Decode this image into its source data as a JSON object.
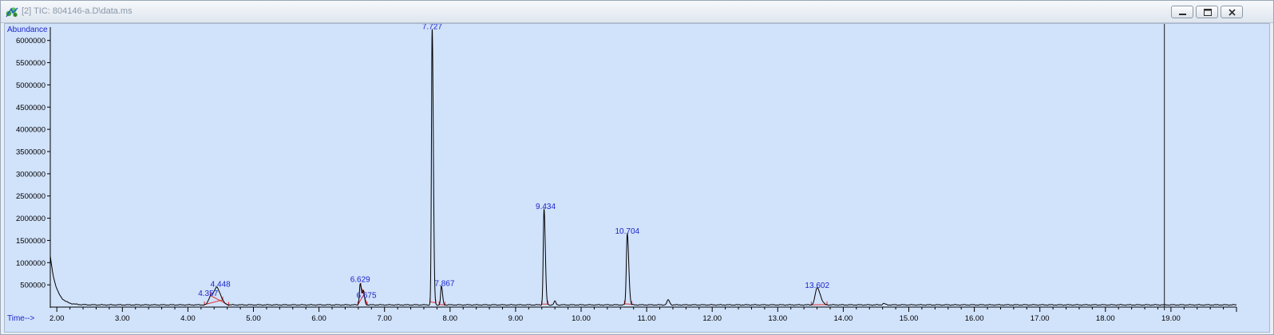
{
  "window": {
    "title": "[2] TIC: 804146-a.D\\data.ms",
    "buttons": [
      "minimize",
      "restore",
      "close"
    ],
    "icon": "app-icon"
  },
  "chart_data": {
    "type": "line",
    "ylabel": "Abundance",
    "xlabel": "Time-->",
    "xlim": [
      1.9,
      20.0
    ],
    "ylim": [
      0,
      6300000
    ],
    "x_ticks": [
      2.0,
      3.0,
      4.0,
      5.0,
      6.0,
      7.0,
      8.0,
      9.0,
      10.0,
      11.0,
      12.0,
      13.0,
      14.0,
      15.0,
      16.0,
      17.0,
      18.0,
      19.0
    ],
    "x_tick_labels": [
      "2.00",
      "3.00",
      "4.00",
      "5.00",
      "6.00",
      "7.00",
      "8.00",
      "9.00",
      "10.00",
      "11.00",
      "12.00",
      "13.00",
      "14.00",
      "15.00",
      "16.00",
      "17.00",
      "18.00",
      "19.00"
    ],
    "y_ticks": [
      500000,
      1000000,
      1500000,
      2000000,
      2500000,
      3000000,
      3500000,
      4000000,
      4500000,
      5000000,
      5500000,
      6000000
    ],
    "y_tick_labels": [
      "500000",
      "1000000",
      "1500000",
      "2000000",
      "2500000",
      "3000000",
      "3500000",
      "4000000",
      "4500000",
      "5000000",
      "5500000",
      "6000000"
    ],
    "cursor_time": 18.9,
    "peaks": [
      {
        "rt": 4.357,
        "label": "4.357",
        "height": 230000,
        "width": 0.035
      },
      {
        "rt": 4.448,
        "label": "4.448",
        "height": 330000,
        "width": 0.035
      },
      {
        "rt": 6.629,
        "label": "6.629",
        "height": 480000,
        "width": 0.012
      },
      {
        "rt": 6.675,
        "label": "6.675",
        "height": 300000,
        "width": 0.012
      },
      {
        "rt": 7.727,
        "label": "7.727",
        "height": 6200000,
        "width": 0.011
      },
      {
        "rt": 7.867,
        "label": "7.867",
        "height": 420000,
        "width": 0.011
      },
      {
        "rt": 9.434,
        "label": "9.434",
        "height": 2150000,
        "width": 0.012
      },
      {
        "rt": 10.704,
        "label": "10.704",
        "height": 1600000,
        "width": 0.014
      },
      {
        "rt": 13.602,
        "label": "13.602",
        "height": 380000,
        "width": 0.03
      }
    ],
    "minor_peaks": [
      {
        "rt": 9.6,
        "height": 80000,
        "width": 0.015
      },
      {
        "rt": 11.33,
        "height": 110000,
        "width": 0.02
      },
      {
        "rt": 14.62,
        "height": 30000,
        "width": 0.02
      }
    ],
    "baseline": 50000,
    "initial_value": 1150000
  }
}
